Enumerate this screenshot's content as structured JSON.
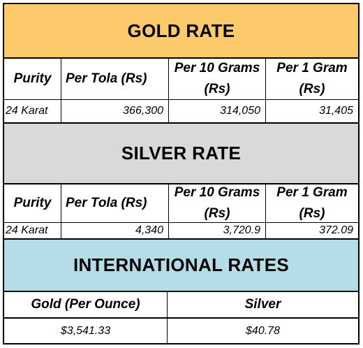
{
  "gold": {
    "title": "GOLD RATE",
    "headers": [
      "Purity",
      "Per Tola (Rs)",
      "Per 10 Grams (Rs)",
      "Per 1 Gram (Rs)"
    ],
    "row": {
      "purity": "24 Karat",
      "per_tola": "366,300",
      "per_10_grams": "314,050",
      "per_1_gram": "31,405"
    }
  },
  "silver": {
    "title": "SILVER RATE",
    "headers": [
      "Purity",
      "Per Tola (Rs)",
      "Per 10 Grams (Rs)",
      "Per 1 Gram (Rs)"
    ],
    "row": {
      "purity": "24 Karat",
      "per_tola": "4,340",
      "per_10_grams": "3,720.9",
      "per_1_gram": "372.09"
    }
  },
  "international": {
    "title": "INTERNATIONAL RATES",
    "headers": [
      "Gold (Per Ounce)",
      "Silver"
    ],
    "row": {
      "gold": "$3,541.33",
      "silver": "$40.78"
    }
  },
  "colors": {
    "gold_band": "#fcc96b",
    "silver_band": "#d9d9d9",
    "international_band": "#b5dde7"
  }
}
